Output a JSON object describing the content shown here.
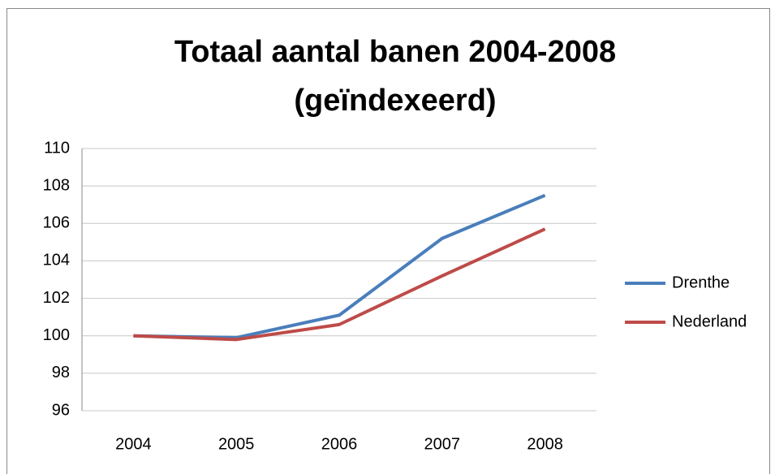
{
  "chart_data": {
    "type": "line",
    "title": "Totaal aantal banen 2004-2008",
    "subtitle": "(geïndexeerd)",
    "categories": [
      "2004",
      "2005",
      "2006",
      "2007",
      "2008"
    ],
    "series": [
      {
        "name": "Drenthe",
        "color": "#4a7ebb",
        "values": [
          100,
          99.9,
          101.1,
          105.2,
          107.5
        ]
      },
      {
        "name": "Nederland",
        "color": "#be4b48",
        "values": [
          100,
          99.8,
          100.6,
          103.2,
          105.7
        ]
      }
    ],
    "ylim": [
      96,
      110
    ],
    "yticks": [
      96,
      98,
      100,
      102,
      104,
      106,
      108,
      110
    ],
    "grid": true,
    "legend": "right"
  }
}
